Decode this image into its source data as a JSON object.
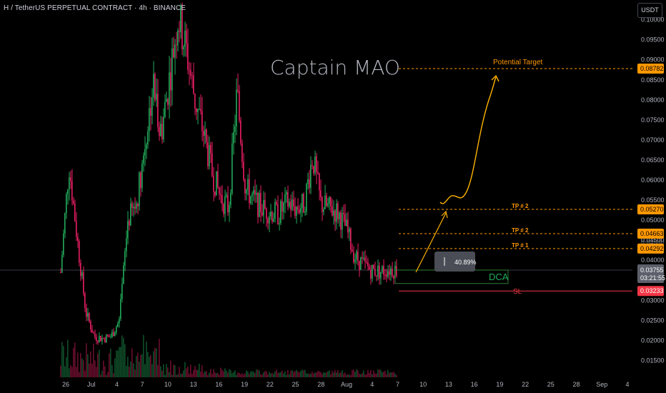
{
  "header": {
    "symbol_line": "H / TetherUS PERPETUAL CONTRACT · 4h · BINANCE",
    "currency": "USDT"
  },
  "watermark": "Captain MAO",
  "colors": {
    "background": "#000000",
    "up": "#22ab5a",
    "down": "#e91e63",
    "level_line": "#ff9800",
    "sl_line": "#f23645",
    "dca_box": "#2e7d32",
    "projection": "#ffb300"
  },
  "chart_data": {
    "type": "candlestick",
    "timeframe": "4h",
    "y_axis": {
      "range": [
        0.0108,
        0.1035
      ],
      "ticks": [
        0.015,
        0.02,
        0.025,
        0.03,
        0.035,
        0.04,
        0.045,
        0.05,
        0.055,
        0.06,
        0.065,
        0.07,
        0.075,
        0.08,
        0.085,
        0.09,
        0.095,
        0.1
      ]
    },
    "x_axis": {
      "ticks": [
        "26",
        "Jul",
        "4",
        "7",
        "10",
        "13",
        "16",
        "19",
        "22",
        "25",
        "28",
        "Aug",
        "4",
        "7",
        "10",
        "13",
        "16",
        "19",
        "22",
        "25",
        "28",
        "Sep",
        "4"
      ]
    },
    "price_path": [
      [
        0,
        0.037
      ],
      [
        1,
        0.064
      ],
      [
        2,
        0.045
      ],
      [
        3,
        0.027
      ],
      [
        4,
        0.021
      ],
      [
        5,
        0.0205
      ],
      [
        6,
        0.021
      ],
      [
        7,
        0.025
      ],
      [
        8,
        0.05
      ],
      [
        9,
        0.054
      ],
      [
        10,
        0.068
      ],
      [
        11,
        0.084
      ],
      [
        12,
        0.072
      ],
      [
        13,
        0.086
      ],
      [
        14,
        0.101
      ],
      [
        15,
        0.092
      ],
      [
        16,
        0.08
      ],
      [
        17,
        0.072
      ],
      [
        18,
        0.062
      ],
      [
        19,
        0.056
      ],
      [
        20,
        0.053
      ],
      [
        21,
        0.082
      ],
      [
        22,
        0.058
      ],
      [
        23,
        0.055
      ],
      [
        24,
        0.053
      ],
      [
        25,
        0.052
      ],
      [
        26,
        0.0515
      ],
      [
        27,
        0.0545
      ],
      [
        28,
        0.053
      ],
      [
        29,
        0.054
      ],
      [
        30,
        0.066
      ],
      [
        31,
        0.054
      ],
      [
        32,
        0.053
      ],
      [
        33,
        0.052
      ],
      [
        34,
        0.048
      ],
      [
        35,
        0.041
      ],
      [
        36,
        0.039
      ],
      [
        37,
        0.0375
      ],
      [
        38,
        0.0372
      ],
      [
        39,
        0.0378
      ],
      [
        40,
        0.0376
      ]
    ],
    "levels": [
      {
        "name": "Potential Target",
        "price": 0.08782,
        "label": "0.08782",
        "text": "Potential Target"
      },
      {
        "name": "TP # 2",
        "price": 0.0527,
        "label": "0.05270",
        "text": "TP # 2"
      },
      {
        "name": "TP # 2",
        "price": 0.04663,
        "label": "0.04663",
        "text": "TP # 2"
      },
      {
        "name": "TP # 1",
        "price": 0.04292,
        "label": "0.04292",
        "text": "TP # 1"
      },
      {
        "name": "SL",
        "price": 0.03233,
        "label": "0.03233",
        "text": "SL"
      }
    ],
    "current_price": {
      "price": 0.03755,
      "label": "0.03755",
      "countdown": "03:21:55"
    },
    "partial_tick": "0.04500",
    "dca_zone": {
      "label": "DCA",
      "top": 0.03755,
      "bottom": 0.0342
    },
    "measure_tooltip": {
      "label": "40.89%"
    },
    "projection_label": "Potential Target"
  }
}
